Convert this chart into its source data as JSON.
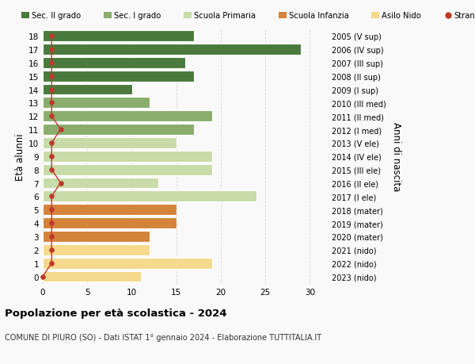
{
  "ages": [
    0,
    1,
    2,
    3,
    4,
    5,
    6,
    7,
    8,
    9,
    10,
    11,
    12,
    13,
    14,
    15,
    16,
    17,
    18
  ],
  "bar_values": [
    11,
    19,
    12,
    12,
    15,
    15,
    24,
    13,
    19,
    19,
    15,
    17,
    19,
    12,
    10,
    17,
    16,
    29,
    17
  ],
  "bar_colors": [
    "#f5d98c",
    "#f5d98c",
    "#f5d98c",
    "#d4833a",
    "#d4833a",
    "#d4833a",
    "#c8dba8",
    "#c8dba8",
    "#c8dba8",
    "#c8dba8",
    "#c8dba8",
    "#8aad6e",
    "#8aad6e",
    "#8aad6e",
    "#4a7a3d",
    "#4a7a3d",
    "#4a7a3d",
    "#4a7a3d",
    "#4a7a3d"
  ],
  "stranieri_values": [
    0,
    1,
    1,
    1,
    1,
    1,
    1,
    2,
    1,
    1,
    1,
    2,
    1,
    1,
    1,
    1,
    1,
    1,
    1
  ],
  "right_labels": [
    "2023 (nido)",
    "2022 (nido)",
    "2021 (nido)",
    "2020 (mater)",
    "2019 (mater)",
    "2018 (mater)",
    "2017 (I ele)",
    "2016 (II ele)",
    "2015 (III ele)",
    "2014 (IV ele)",
    "2013 (V ele)",
    "2012 (I med)",
    "2011 (II med)",
    "2010 (III med)",
    "2009 (I sup)",
    "2008 (II sup)",
    "2007 (III sup)",
    "2006 (IV sup)",
    "2005 (V sup)"
  ],
  "legend_labels": [
    "Sec. II grado",
    "Sec. I grado",
    "Scuola Primaria",
    "Scuola Infanzia",
    "Asilo Nido",
    "Stranieri"
  ],
  "legend_colors": [
    "#4a7a3d",
    "#8aad6e",
    "#c8dba8",
    "#d4833a",
    "#f5d98c",
    "#c0392b"
  ],
  "ylabel_left": "Età alunni",
  "ylabel_right": "Anni di nascita",
  "title": "Popolazione per età scolastica - 2024",
  "subtitle": "COMUNE DI PIURO (SO) - Dati ISTAT 1° gennaio 2024 - Elaborazione TUTTITALIA.IT",
  "xlim": [
    0,
    32
  ],
  "background_color": "#f9f9f9",
  "grid_color": "#d8d8d8",
  "stranieri_color": "#c0392b"
}
